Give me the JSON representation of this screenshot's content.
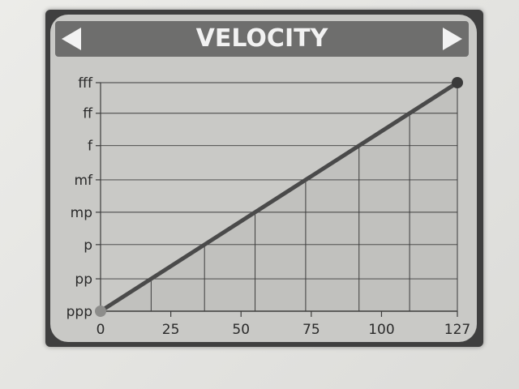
{
  "window": {
    "title": "VELOCITY",
    "prev_icon": "left-arrow-icon",
    "next_icon": "right-arrow-icon"
  },
  "colors": {
    "screen": "#c9c9c6",
    "titlebar": "#6e6e6d",
    "curve": "#4a4a4a",
    "grid": "#3c3c3c",
    "fill": "#bdbdba"
  },
  "chart_data": {
    "type": "line",
    "title": "VELOCITY",
    "xlabel": "",
    "ylabel": "",
    "x_ticks": [
      0,
      25,
      50,
      75,
      100,
      127
    ],
    "xlim": [
      0,
      127
    ],
    "y_levels": [
      "ppp",
      "pp",
      "p",
      "mp",
      "mf",
      "f",
      "ff",
      "fff"
    ],
    "y_values": [
      0,
      18,
      37,
      55,
      73,
      92,
      110,
      127
    ],
    "ylim": [
      0,
      127
    ],
    "series": [
      {
        "points": [
          [
            0,
            0
          ],
          [
            127,
            127
          ]
        ]
      }
    ],
    "drop_lines": true,
    "grid": true
  }
}
